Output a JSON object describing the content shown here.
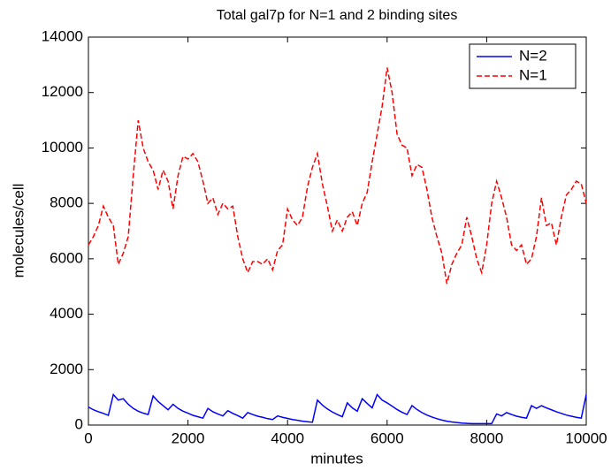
{
  "chart_data": {
    "type": "line",
    "title": "Total gal7p for N=1 and 2 binding sites",
    "x_label": "minutes",
    "y_label": "molecules/cell",
    "x": [
      0,
      100,
      200,
      300,
      400,
      500,
      600,
      700,
      800,
      900,
      1000,
      1100,
      1200,
      1300,
      1400,
      1500,
      1600,
      1700,
      1800,
      1900,
      2000,
      2100,
      2200,
      2300,
      2400,
      2500,
      2600,
      2700,
      2800,
      2900,
      3000,
      3100,
      3200,
      3300,
      3400,
      3500,
      3600,
      3700,
      3800,
      3900,
      4000,
      4100,
      4200,
      4300,
      4400,
      4500,
      4600,
      4700,
      4800,
      4900,
      5000,
      5100,
      5200,
      5300,
      5400,
      5500,
      5600,
      5700,
      5800,
      5900,
      6000,
      6100,
      6200,
      6300,
      6400,
      6500,
      6600,
      6700,
      6800,
      6900,
      7000,
      7100,
      7200,
      7300,
      7400,
      7500,
      7600,
      7700,
      7800,
      7900,
      8000,
      8100,
      8200,
      8300,
      8400,
      8500,
      8600,
      8700,
      8800,
      8900,
      9000,
      9100,
      9200,
      9300,
      9400,
      9500,
      9600,
      9700,
      9800,
      9900,
      10000
    ],
    "series": [
      {
        "name": "N=2",
        "color": "#0000ff",
        "dash": false,
        "values": [
          650,
          550,
          480,
          420,
          350,
          1100,
          900,
          950,
          750,
          600,
          500,
          430,
          380,
          1050,
          850,
          700,
          550,
          750,
          600,
          500,
          430,
          350,
          300,
          250,
          600,
          480,
          400,
          330,
          520,
          420,
          340,
          250,
          450,
          380,
          320,
          280,
          230,
          200,
          330,
          280,
          240,
          200,
          170,
          140,
          120,
          100,
          900,
          720,
          580,
          470,
          380,
          300,
          800,
          620,
          500,
          950,
          780,
          620,
          1100,
          900,
          800,
          680,
          560,
          460,
          380,
          700,
          560,
          450,
          360,
          290,
          230,
          180,
          140,
          110,
          90,
          70,
          60,
          50,
          50,
          50,
          50,
          50,
          400,
          330,
          450,
          380,
          320,
          280,
          250,
          700,
          600,
          700,
          620,
          550,
          480,
          420,
          360,
          320,
          280,
          250,
          1100
        ]
      },
      {
        "name": "N=1",
        "color": "#ff0000",
        "dash": true,
        "values": [
          6500,
          6800,
          7200,
          7900,
          7500,
          7200,
          5800,
          6200,
          6800,
          9000,
          11000,
          10000,
          9500,
          9200,
          8500,
          9200,
          8800,
          7800,
          9000,
          9700,
          9600,
          9800,
          9500,
          8800,
          8000,
          8200,
          7600,
          8000,
          7800,
          7900,
          6800,
          6000,
          5500,
          5900,
          5900,
          5800,
          6000,
          5600,
          6300,
          6500,
          7800,
          7400,
          7200,
          7500,
          8600,
          9300,
          9800,
          8700,
          7900,
          7000,
          7400,
          7000,
          7500,
          7700,
          7200,
          8000,
          8400,
          9500,
          10500,
          11500,
          12900,
          12000,
          10500,
          10100,
          10000,
          9000,
          9400,
          9300,
          8500,
          7500,
          6800,
          6200,
          5100,
          5800,
          6200,
          6500,
          7500,
          6800,
          6000,
          5500,
          6500,
          8000,
          8800,
          8200,
          7500,
          6500,
          6300,
          6500,
          5800,
          6000,
          6800,
          8200,
          7200,
          7300,
          6500,
          7500,
          8300,
          8500,
          8800,
          8700,
          8000
        ]
      }
    ],
    "xlim": [
      0,
      10000
    ],
    "xticks": [
      0,
      2000,
      4000,
      6000,
      8000,
      10000
    ],
    "ylim": [
      0,
      14000
    ],
    "yticks": [
      0,
      2000,
      4000,
      6000,
      8000,
      10000,
      12000,
      14000
    ],
    "grid": false,
    "legend": "upper right"
  }
}
